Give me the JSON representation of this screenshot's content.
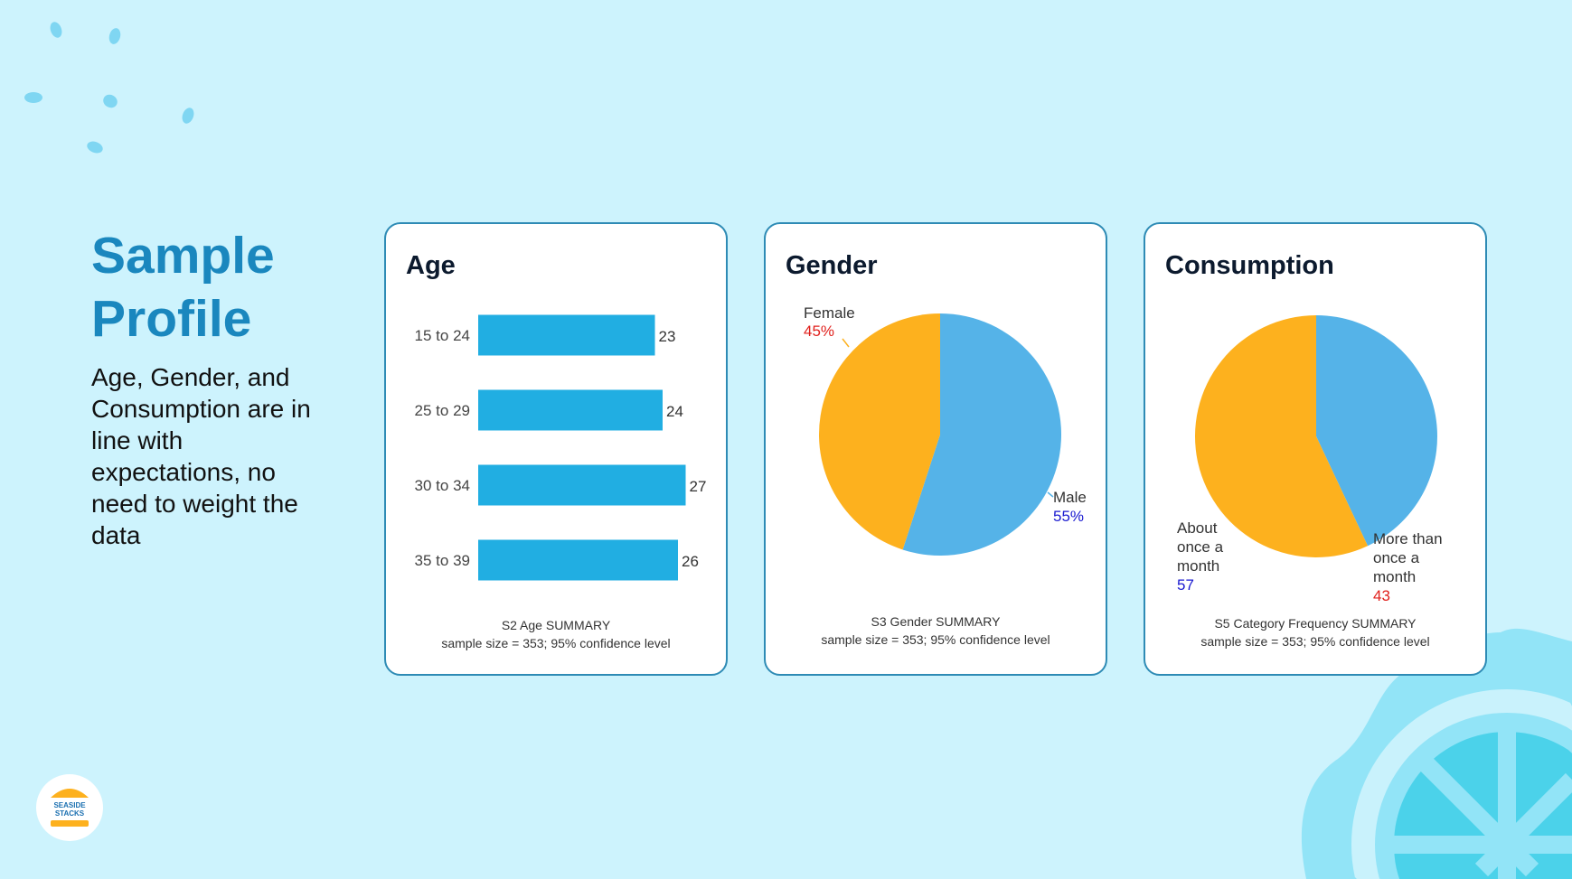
{
  "slide": {
    "title_lines": [
      "Sample",
      "Profile"
    ],
    "body": "Age, Gender, and Consumption are in line with expectations, no need to weight the data",
    "logo_text": "SEASIDE STACKS"
  },
  "colors": {
    "background": "#cdf3fd",
    "title": "#1a87be",
    "bar": "#21aee2",
    "pie_blue": "#55b3e8",
    "pie_orange": "#fdb11e",
    "label_red": "#e0201c",
    "label_blue": "#1a1ad0"
  },
  "chart_data": [
    {
      "type": "bar",
      "orientation": "horizontal",
      "title": "Age",
      "categories": [
        "15 to 24",
        "25 to 29",
        "30 to 34",
        "35 to 39"
      ],
      "values": [
        23,
        24,
        27,
        26
      ],
      "caption": [
        "S2 Age SUMMARY",
        "sample size = 353; 95% confidence level"
      ]
    },
    {
      "type": "pie",
      "title": "Gender",
      "slices": [
        {
          "label": "Male",
          "value": 55,
          "value_text": "55%"
        },
        {
          "label": "Female",
          "value": 45,
          "value_text": "45%"
        }
      ],
      "caption": [
        "S3 Gender SUMMARY",
        "sample size = 353; 95% confidence level"
      ]
    },
    {
      "type": "pie",
      "title": "Consumption",
      "slices": [
        {
          "label": "More than once a month",
          "label_lines": [
            "More than",
            "once a",
            "month"
          ],
          "value": 43,
          "value_text": "43"
        },
        {
          "label": "About once a month",
          "label_lines": [
            "About",
            "once a",
            "month"
          ],
          "value": 57,
          "value_text": "57"
        }
      ],
      "caption": [
        "S5 Category Frequency SUMMARY",
        "sample size = 353; 95% confidence level"
      ]
    }
  ]
}
